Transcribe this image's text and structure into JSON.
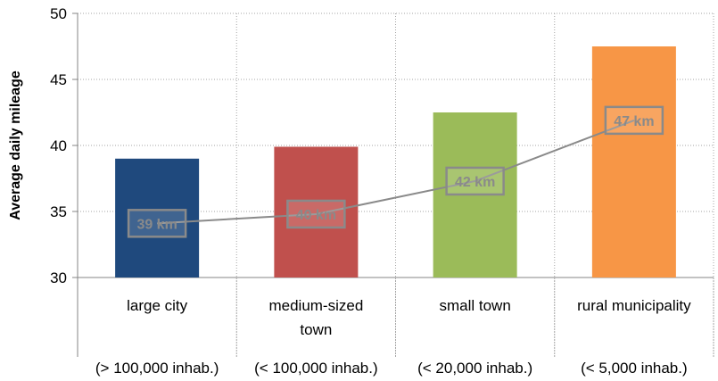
{
  "chart_data": {
    "type": "bar",
    "title": "",
    "xlabel": "",
    "ylabel": "Average daily mileage",
    "ylim": [
      30,
      50
    ],
    "yticks": [
      30,
      35,
      40,
      45,
      50
    ],
    "grid": true,
    "categories": [
      [
        "large city"
      ],
      [
        "medium-sized",
        "town"
      ],
      [
        "small town"
      ],
      [
        "rural municipality"
      ]
    ],
    "sublabels": [
      "(> 100,000 inhab.)",
      "(< 100,000 inhab.)",
      "(< 20,000 inhab.)",
      "(< 5,000 inhab.)"
    ],
    "values": [
      39.0,
      39.9,
      42.5,
      47.5
    ],
    "colors": [
      "#1f497d",
      "#c0504d",
      "#9bbb59",
      "#f79646"
    ],
    "line": {
      "values": [
        34.1,
        34.8,
        37.3,
        41.9
      ],
      "labels": [
        "39 km",
        "40 km",
        "42 km",
        "47 km"
      ],
      "color": "#8a8a8a"
    }
  }
}
